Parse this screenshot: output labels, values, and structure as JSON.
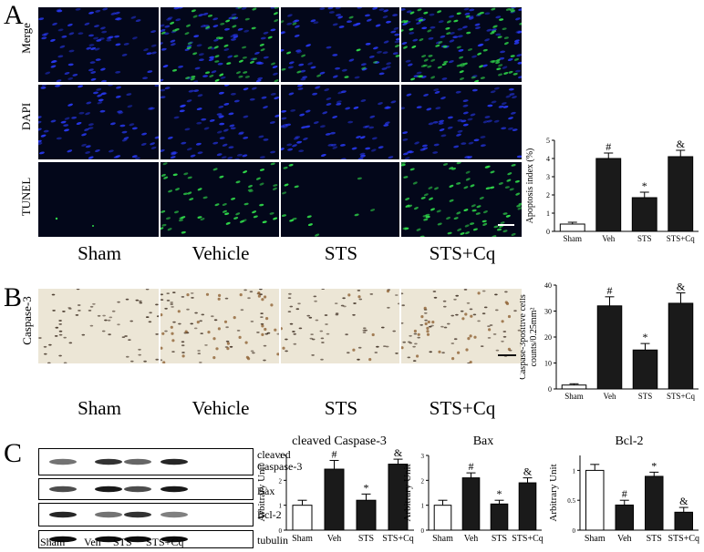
{
  "panels": {
    "a": "A",
    "b": "B",
    "c": "C"
  },
  "groups": [
    "Sham",
    "Vehicle",
    "STS",
    "STS+Cq"
  ],
  "rows_a": [
    "Merge",
    "DAPI",
    "TUNEL"
  ],
  "row_b": "Caspase-3",
  "blot_labels": [
    "cleaved\nCaspase-3",
    "Bax",
    "Bcl-2",
    "tubulin"
  ],
  "blot_lanes": [
    "Sham",
    "Veh",
    "STS",
    "STS+Cq"
  ],
  "colors": {
    "fluor_bg": "#03071a",
    "dapi": "#2a3cff",
    "tunel": "#2fd84a",
    "ihc_bg": "#ece6d6",
    "ihc_nuclei": "#3a2a1e",
    "ihc_brown": "#8a5a2a",
    "bar_dark": "#1a1a1a",
    "bar_light": "#ffffff"
  },
  "chart_data": [
    {
      "type": "bar",
      "categories": [
        "Sham",
        "Veh",
        "STS",
        "STS+Cq"
      ],
      "values": [
        0.4,
        4.0,
        1.85,
        4.1
      ],
      "errors": [
        0.1,
        0.3,
        0.3,
        0.35
      ],
      "marks": [
        "",
        "#",
        "*",
        "&"
      ],
      "fills": [
        "white",
        "dark",
        "dark",
        "dark"
      ],
      "ylabel": "Apoptosis index (%)",
      "ylim": [
        0,
        5
      ],
      "yticks": [
        0,
        1,
        2,
        3,
        4,
        5
      ]
    },
    {
      "type": "bar",
      "categories": [
        "Sham",
        "Veh",
        "STS",
        "STS+Cq"
      ],
      "values": [
        1.5,
        32,
        15,
        33
      ],
      "errors": [
        0.5,
        3.5,
        2.5,
        4
      ],
      "marks": [
        "",
        "#",
        "*",
        "&"
      ],
      "fills": [
        "white",
        "dark",
        "dark",
        "dark"
      ],
      "ylabel": "Caspase-3positive cells",
      "ylabel2": "counts/0.25mm²",
      "ylim": [
        0,
        40
      ],
      "yticks": [
        0,
        10,
        20,
        30,
        40
      ]
    },
    {
      "type": "bar",
      "title": "cleaved Caspase-3",
      "categories": [
        "Sham",
        "Veh",
        "STS",
        "STS+Cq"
      ],
      "values": [
        1.0,
        2.45,
        1.2,
        2.65
      ],
      "errors": [
        0.2,
        0.35,
        0.25,
        0.2
      ],
      "marks": [
        "",
        "#",
        "*",
        "&"
      ],
      "fills": [
        "white",
        "dark",
        "dark",
        "dark"
      ],
      "ylabel": "Arbitrary Unit",
      "ylim": [
        0,
        3
      ],
      "yticks": [
        0,
        1,
        2,
        3
      ]
    },
    {
      "type": "bar",
      "title": "Bax",
      "categories": [
        "Sham",
        "Veh",
        "STS",
        "STS+Cq"
      ],
      "values": [
        1.0,
        2.1,
        1.05,
        1.9
      ],
      "errors": [
        0.2,
        0.2,
        0.15,
        0.2
      ],
      "marks": [
        "",
        "#",
        "*",
        "&"
      ],
      "fills": [
        "white",
        "dark",
        "dark",
        "dark"
      ],
      "ylabel": "Arbitrary Unit",
      "ylim": [
        0,
        3
      ],
      "yticks": [
        0,
        1,
        2,
        3
      ]
    },
    {
      "type": "bar",
      "title": "Bcl-2",
      "categories": [
        "Sham",
        "Veh",
        "STS",
        "STS+Cq"
      ],
      "values": [
        1.0,
        0.42,
        0.9,
        0.3
      ],
      "errors": [
        0.1,
        0.08,
        0.07,
        0.08
      ],
      "marks": [
        "",
        "#",
        "*",
        "&"
      ],
      "fills": [
        "white",
        "dark",
        "dark",
        "dark"
      ],
      "ylabel": "Arbitrary Unit",
      "ylim": [
        0,
        1.25
      ],
      "yticks": [
        0,
        0.5,
        1
      ]
    }
  ]
}
